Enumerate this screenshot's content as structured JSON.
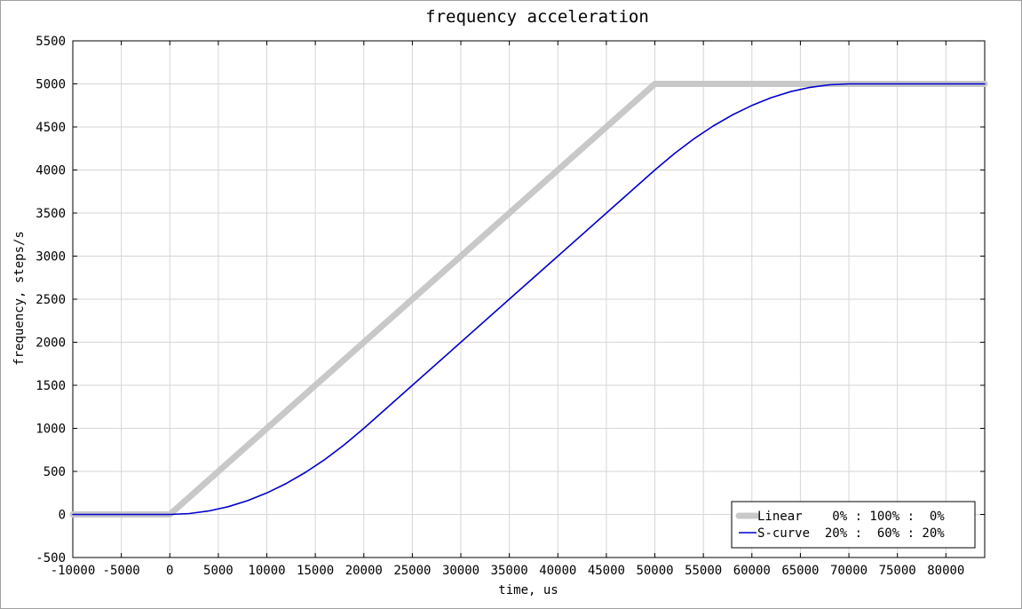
{
  "chart_data": {
    "type": "line",
    "title": "frequency acceleration",
    "xlabel": "time, us",
    "ylabel": "frequency, steps/s",
    "xlim": [
      -10000,
      84000
    ],
    "ylim": [
      -500,
      5500
    ],
    "x_ticks": [
      -10000,
      -5000,
      0,
      5000,
      10000,
      15000,
      20000,
      25000,
      30000,
      35000,
      40000,
      45000,
      50000,
      55000,
      60000,
      65000,
      70000,
      75000,
      80000
    ],
    "y_ticks": [
      -500,
      0,
      500,
      1000,
      1500,
      2000,
      2500,
      3000,
      3500,
      4000,
      4500,
      5000,
      5500
    ],
    "grid": true,
    "legend_position": "bottom-right",
    "series": [
      {
        "name": "Linear    0% : 100% :  0%",
        "color": "#c8c8c8",
        "x": [
          -10000,
          0,
          50000,
          84000
        ],
        "y": [
          0,
          0,
          5000,
          5000
        ]
      },
      {
        "name": "S-curve  20% :  60% : 20%",
        "color": "#0000cc",
        "x": [
          -10000,
          0,
          2000,
          4000,
          6000,
          8000,
          10000,
          12000,
          14000,
          16000,
          18000,
          20000,
          25000,
          30000,
          35000,
          40000,
          45000,
          50000,
          52000,
          54000,
          56000,
          58000,
          60000,
          62000,
          64000,
          66000,
          68000,
          70000,
          84000
        ],
        "y": [
          0,
          0,
          10,
          40,
          90,
          160,
          250,
          360,
          490,
          640,
          810,
          1000,
          1500,
          2000,
          2500,
          3000,
          3500,
          4000,
          4190,
          4360,
          4510,
          4640,
          4750,
          4840,
          4910,
          4960,
          4990,
          5000,
          5000
        ]
      }
    ]
  }
}
